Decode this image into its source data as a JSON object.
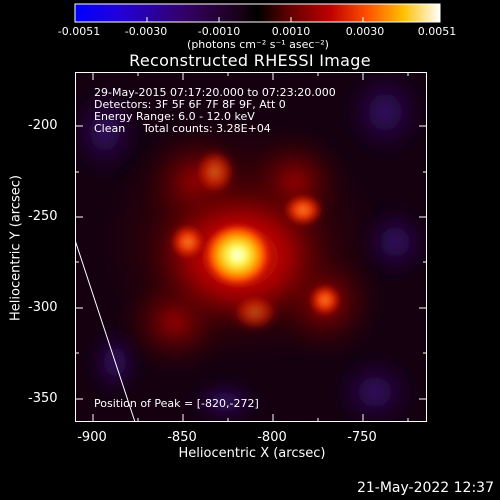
{
  "colorbar": {
    "tick_labels": [
      "-0.0051",
      "-0.0030",
      "-0.0010",
      "0.0010",
      "0.0030",
      "0.0051"
    ],
    "unit_label": "(photons cm⁻² s⁻¹ asec⁻²)"
  },
  "title": "Reconstructed RHESSI Image",
  "info": {
    "time_range": "29-May-2015 07:17:20.000 to 07:23:20.000",
    "detectors": "Detectors: 3F 5F 6F 7F 8F 9F, Att 0",
    "energy": "Energy Range: 6.0 - 12.0 keV",
    "method": "Clean",
    "counts": "Total counts: 3.28E+04"
  },
  "peak_label": "Position of Peak = [-820,-272]",
  "axes": {
    "xlabel": "Heliocentric X (arcsec)",
    "ylabel": "Heliocentric Y (arcsec)",
    "xticks": [
      "-900",
      "-850",
      "-800",
      "-750"
    ],
    "yticks": [
      "-200",
      "-250",
      "-300",
      "-350"
    ],
    "xlim": [
      -910,
      -715
    ],
    "ylim": [
      -365,
      -170
    ]
  },
  "map": {
    "peak": [
      -820,
      -272
    ],
    "colors": {
      "low": "#1a0acc",
      "mid": "#000000",
      "high": "#ffff00",
      "top": "#ffffff"
    }
  },
  "timestamp": "21-May-2022 12:37"
}
